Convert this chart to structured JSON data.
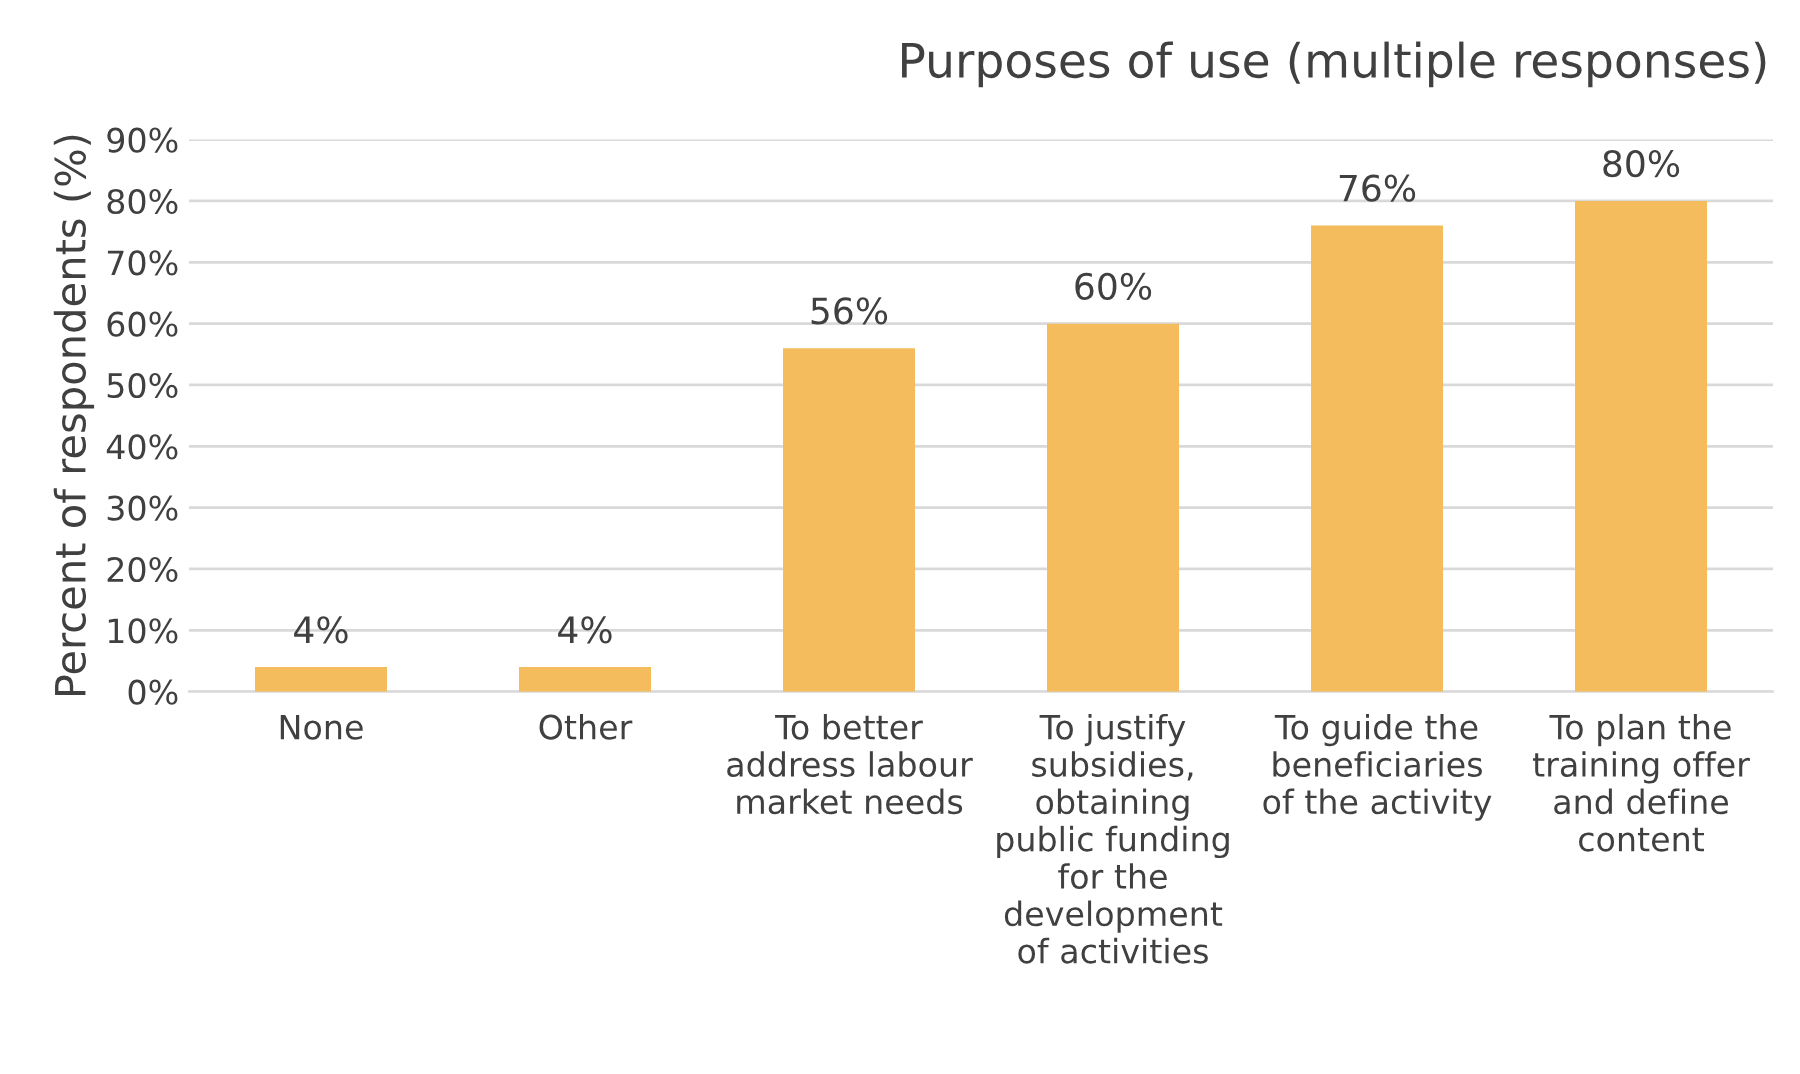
{
  "chart_data": {
    "type": "bar",
    "title": "Purposes of use (multiple responses)",
    "ylabel": "Percent of respondents (%)",
    "categories": [
      "None",
      "Other",
      "To better\naddress labour\nmarket needs",
      "To justify\nsubsidies,\nobtaining\npublic funding\nfor the\ndevelopment\nof activities",
      "To guide the\nbeneficiaries\nof the activity",
      "To plan the\ntraining offer\nand define\ncontent"
    ],
    "values": [
      4,
      4,
      56,
      60,
      76,
      80
    ],
    "value_labels": [
      "4%",
      "4%",
      "56%",
      "60%",
      "76%",
      "80%"
    ],
    "color": "#f4bc5c",
    "ylim": [
      0,
      90
    ],
    "yticks": [
      {
        "value": 0,
        "label": "0%"
      },
      {
        "value": 10,
        "label": "10%"
      },
      {
        "value": 20,
        "label": "20%"
      },
      {
        "value": 30,
        "label": "30%"
      },
      {
        "value": 40,
        "label": "40%"
      },
      {
        "value": 50,
        "label": "50%"
      },
      {
        "value": 60,
        "label": "60%"
      },
      {
        "value": 70,
        "label": "70%"
      },
      {
        "value": 80,
        "label": "80%"
      },
      {
        "value": 90,
        "label": "90%"
      }
    ],
    "grid": "y"
  }
}
